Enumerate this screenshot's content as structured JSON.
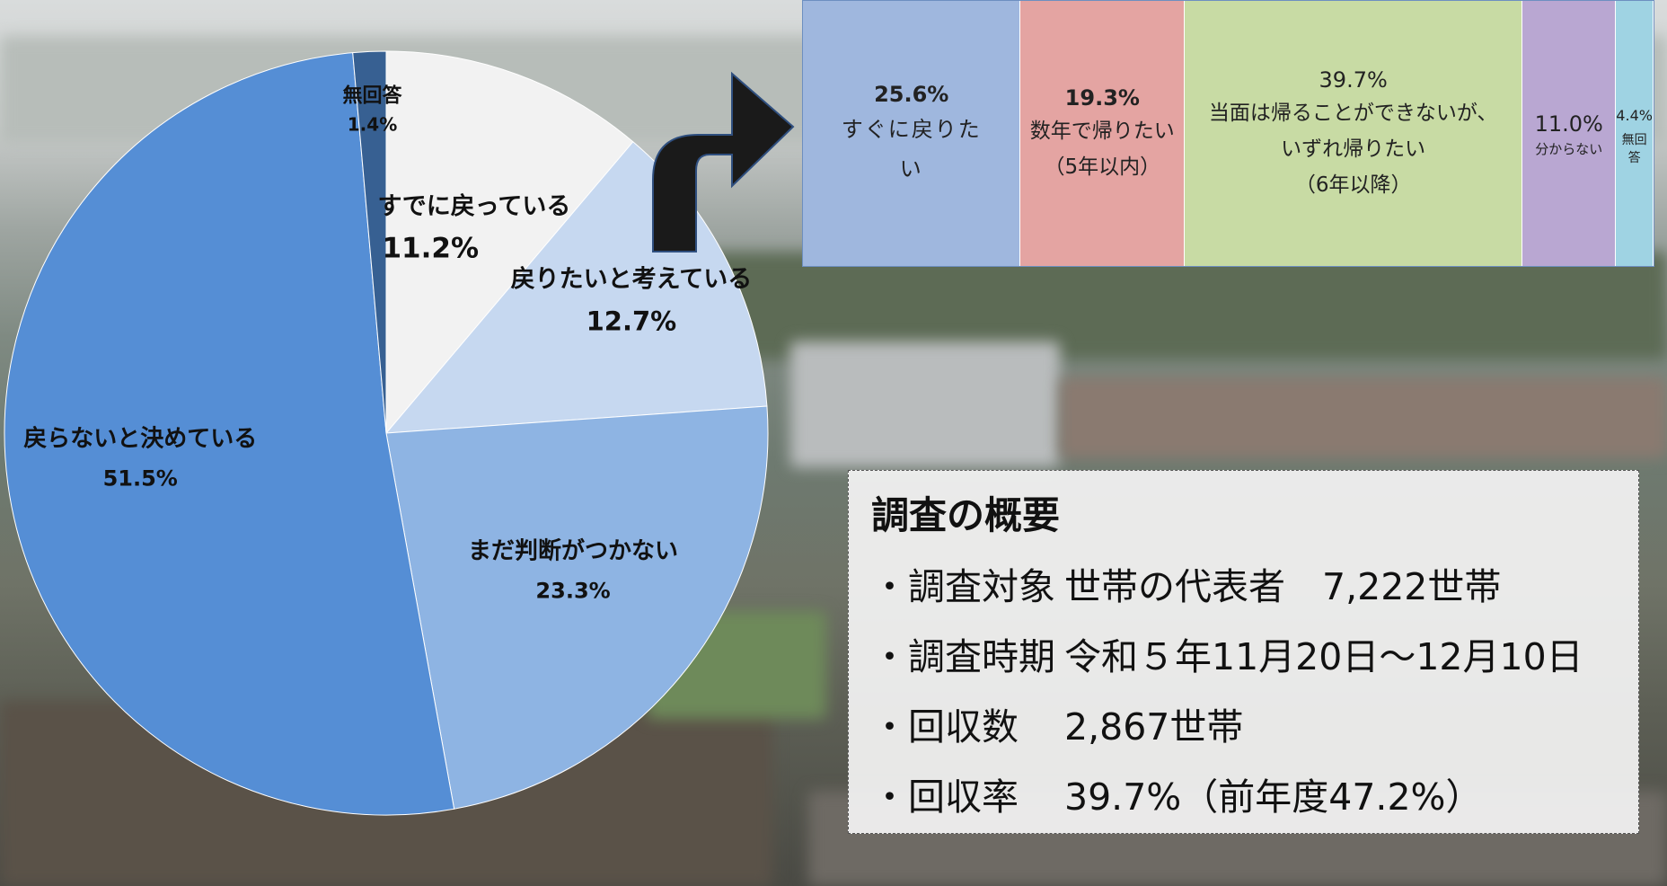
{
  "chart_data": [
    {
      "type": "pie",
      "slices": [
        {
          "label": "すでに戻っている",
          "value": 11.2,
          "value_text": "11.2%",
          "color": "#f2f2f2"
        },
        {
          "label": "戻りたいと考えている",
          "value": 12.7,
          "value_text": "12.7%",
          "color": "#c6d8f0"
        },
        {
          "label": "まだ判断がつかない",
          "value": 23.3,
          "value_text": "23.3%",
          "color": "#8eb4e3"
        },
        {
          "label": "戻らないと決めている",
          "value": 51.5,
          "value_text": "51.5%",
          "color": "#558ed5"
        },
        {
          "label": "無回答",
          "value": 1.4,
          "value_text": "1.4%",
          "color": "#376092"
        }
      ]
    },
    {
      "type": "bar",
      "orientation": "stacked-100",
      "segments": [
        {
          "value": 25.6,
          "value_text": "25.6%",
          "label_lines": [
            "すぐに戻りた",
            "い"
          ],
          "color": "#9fb7de"
        },
        {
          "value": 19.3,
          "value_text": "19.3%",
          "label_lines": [
            "数年で帰りたい",
            "（5年以内）"
          ],
          "color": "#e4a4a2"
        },
        {
          "value": 39.7,
          "value_text": "39.7%",
          "label_lines": [
            "当面は帰ることができないが、",
            "いずれ帰りたい",
            "（6年以降）"
          ],
          "color": "#c8dba4"
        },
        {
          "value": 11.0,
          "value_text": "11.0%",
          "label_lines": [
            "分からない"
          ],
          "color": "#b9a7d2"
        },
        {
          "value": 4.4,
          "value_text": "4.4%",
          "label_lines": [
            "無回答"
          ],
          "color": "#9fd3e3"
        }
      ]
    }
  ],
  "summary": {
    "title": "調査の概要",
    "rows": [
      {
        "key": "・調査対象",
        "value": "世帯の代表者　7,222世帯"
      },
      {
        "key": "・調査時期",
        "value": "令和５年11月20日～12月10日"
      },
      {
        "key": "・回収数",
        "value": "2,867世帯"
      },
      {
        "key": "・回収率",
        "value": "39.7%（前年度47.2%）"
      }
    ]
  },
  "colors": {
    "arrow": "#1a1a1a",
    "arrow_outline": "#2f4f7f"
  }
}
